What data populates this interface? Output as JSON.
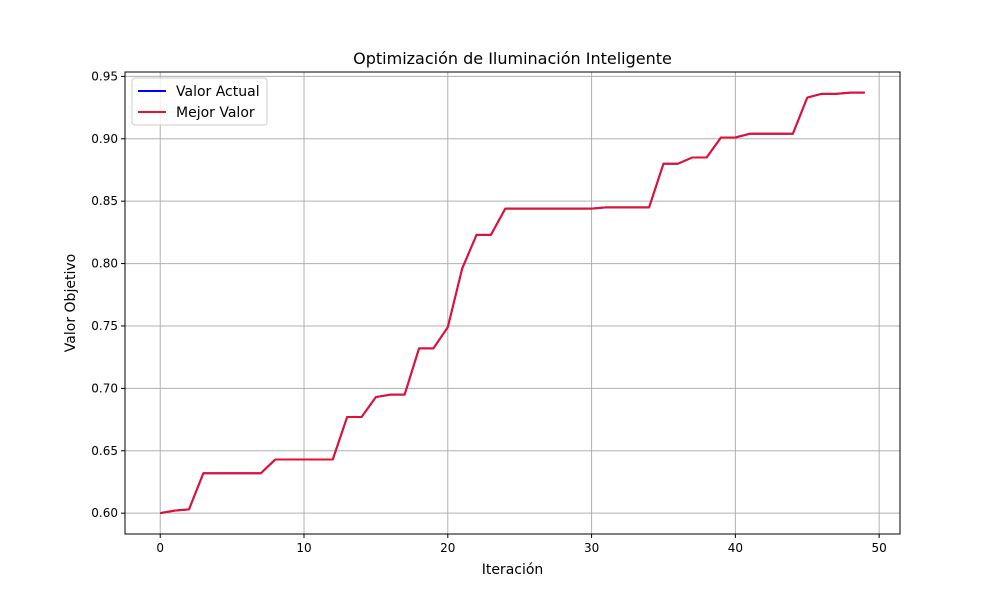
{
  "chart_data": {
    "type": "line",
    "title": "Optimización de Iluminación Inteligente",
    "xlabel": "Iteración",
    "ylabel": "Valor Objetivo",
    "xlim": [
      -2.45,
      51.45
    ],
    "ylim": [
      0.5833,
      0.9535
    ],
    "xticks": [
      0,
      10,
      20,
      30,
      40,
      50
    ],
    "yticks": [
      0.6,
      0.65,
      0.7,
      0.75,
      0.8,
      0.85,
      0.9,
      0.95
    ],
    "ytick_decimals": 2,
    "grid": true,
    "legend_position": "top-left",
    "x": [
      0,
      1,
      2,
      3,
      4,
      5,
      6,
      7,
      8,
      9,
      10,
      11,
      12,
      13,
      14,
      15,
      16,
      17,
      18,
      19,
      20,
      21,
      22,
      23,
      24,
      25,
      26,
      27,
      28,
      29,
      30,
      31,
      32,
      33,
      34,
      35,
      36,
      37,
      38,
      39,
      40,
      41,
      42,
      43,
      44,
      45,
      46,
      47,
      48,
      49
    ],
    "series": [
      {
        "name": "Valor Actual",
        "color": "#0000ff",
        "values": [
          0.6,
          0.602,
          0.603,
          0.632,
          0.632,
          0.632,
          0.632,
          0.632,
          0.643,
          0.643,
          0.643,
          0.643,
          0.643,
          0.677,
          0.677,
          0.693,
          0.695,
          0.695,
          0.732,
          0.732,
          0.749,
          0.796,
          0.823,
          0.823,
          0.844,
          0.844,
          0.844,
          0.844,
          0.844,
          0.844,
          0.844,
          0.845,
          0.845,
          0.845,
          0.845,
          0.88,
          0.88,
          0.885,
          0.885,
          0.901,
          0.901,
          0.904,
          0.904,
          0.904,
          0.904,
          0.933,
          0.936,
          0.936,
          0.937,
          0.937
        ]
      },
      {
        "name": "Mejor Valor",
        "color": "#e8112d",
        "values": [
          0.6,
          0.602,
          0.603,
          0.632,
          0.632,
          0.632,
          0.632,
          0.632,
          0.643,
          0.643,
          0.643,
          0.643,
          0.643,
          0.677,
          0.677,
          0.693,
          0.695,
          0.695,
          0.732,
          0.732,
          0.749,
          0.796,
          0.823,
          0.823,
          0.844,
          0.844,
          0.844,
          0.844,
          0.844,
          0.844,
          0.844,
          0.845,
          0.845,
          0.845,
          0.845,
          0.88,
          0.88,
          0.885,
          0.885,
          0.901,
          0.901,
          0.904,
          0.904,
          0.904,
          0.904,
          0.933,
          0.936,
          0.936,
          0.937,
          0.937
        ]
      }
    ]
  }
}
